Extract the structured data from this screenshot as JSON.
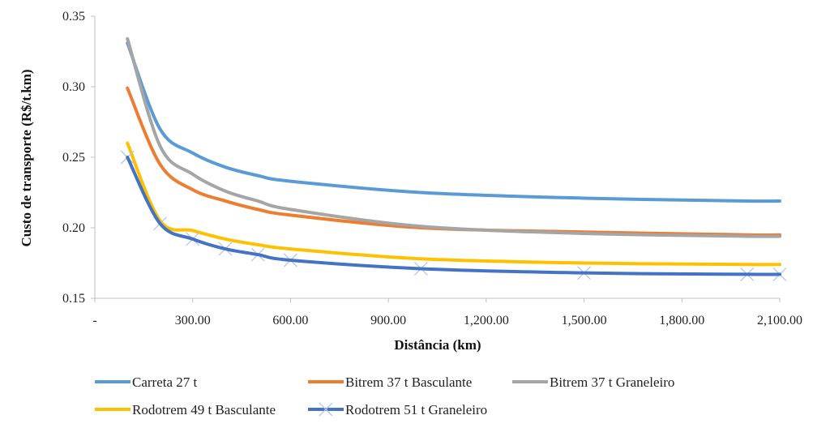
{
  "chart_data": {
    "type": "line",
    "title": "",
    "xlabel": "Distância (km)",
    "ylabel": "Custo de transporte (R$/t.km)",
    "xlim": [
      0,
      2100
    ],
    "ylim": [
      0.15,
      0.35
    ],
    "x_ticks": [
      0,
      300,
      600,
      900,
      1200,
      1500,
      1800,
      2100
    ],
    "x_tick_labels": [
      "-",
      "300.00",
      "600.00",
      "900.00",
      "1,200.00",
      "1,500.00",
      "1,800.00",
      "2,100.00"
    ],
    "y_ticks": [
      0.15,
      0.2,
      0.25,
      0.3,
      0.35
    ],
    "y_tick_labels": [
      "0.15",
      "0.20",
      "0.25",
      "0.30",
      "0.35"
    ],
    "grid": false,
    "legend_position": "bottom",
    "x": [
      100,
      200,
      300,
      400,
      500,
      600,
      1000,
      1500,
      2000,
      2100
    ],
    "series": [
      {
        "name": "Carreta 27 t",
        "color": "#5b9bd5",
        "marker": "none",
        "values": [
          0.331,
          0.27,
          0.253,
          0.243,
          0.237,
          0.233,
          0.225,
          0.221,
          0.219,
          0.219
        ]
      },
      {
        "name": "Bitrem 37 t Basculante",
        "color": "#ed7d31",
        "marker": "none",
        "values": [
          0.299,
          0.245,
          0.227,
          0.219,
          0.213,
          0.209,
          0.2,
          0.197,
          0.195,
          0.195
        ]
      },
      {
        "name": "Bitrem 37 t Graneleiro",
        "color": "#a5a5a5",
        "marker": "none",
        "values": [
          0.334,
          0.258,
          0.238,
          0.226,
          0.219,
          0.213,
          0.201,
          0.196,
          0.194,
          0.194
        ]
      },
      {
        "name": "Rodotrem 49 t Basculante",
        "color": "#ffc000",
        "marker": "none",
        "values": [
          0.26,
          0.205,
          0.198,
          0.192,
          0.188,
          0.185,
          0.178,
          0.175,
          0.174,
          0.174
        ]
      },
      {
        "name": "Rodotrem 51 t Graneleiro",
        "color": "#4472c4",
        "marker": "x",
        "marker_color": "#b4c7e7",
        "values": [
          0.25,
          0.203,
          0.192,
          0.185,
          0.181,
          0.177,
          0.171,
          0.168,
          0.167,
          0.167
        ]
      }
    ]
  }
}
